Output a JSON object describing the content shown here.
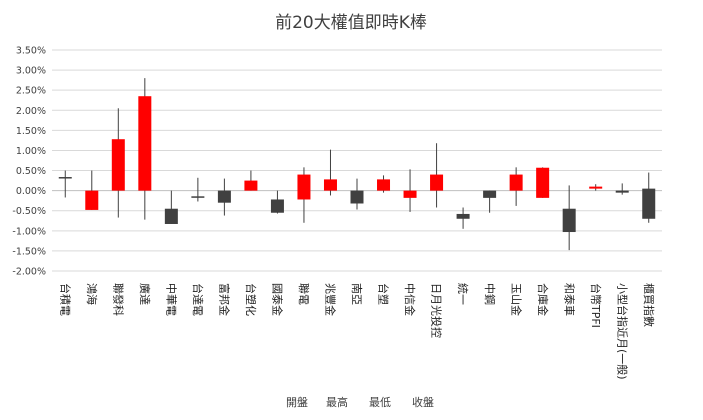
{
  "colors": {
    "up": "#ff0000",
    "down": "#404040",
    "wick": "#404040",
    "grid": "#d9d9d9",
    "axis": "#bfbfbf"
  },
  "chart_data": {
    "type": "candlestick",
    "title": "前20大權值即時K棒",
    "ylim": [
      -2.0,
      3.5
    ],
    "ytick_step": 0.5,
    "ytick_labels": [
      "-2.00%",
      "-1.50%",
      "-1.00%",
      "-0.50%",
      "0.00%",
      "0.50%",
      "1.00%",
      "1.50%",
      "2.00%",
      "2.50%",
      "3.00%",
      "3.50%"
    ],
    "legend": [
      "開盤",
      "最高",
      "最低",
      "收盤"
    ],
    "categories": [
      "台積電",
      "鴻海",
      "聯發科",
      "廣達",
      "中華電",
      "台達電",
      "富邦金",
      "台塑化",
      "國泰金",
      "聯電",
      "兆豐金",
      "南亞",
      "台塑",
      "中信金",
      "日月光投控",
      "統一",
      "中鋼",
      "玉山金",
      "合庫金",
      "和泰車",
      "台幣TPFI",
      "小型台指近月(一般)",
      "櫃買指數"
    ],
    "series": [
      {
        "name": "開盤",
        "values": [
          0.32,
          -0.48,
          0.0,
          0.0,
          -0.45,
          -0.16,
          0.0,
          0.0,
          -0.22,
          -0.22,
          0.0,
          0.0,
          0.0,
          -0.18,
          0.0,
          -0.58,
          0.0,
          0.0,
          -0.18,
          -0.45,
          0.05,
          0.0,
          0.05
        ]
      },
      {
        "name": "最高",
        "values": [
          0.5,
          0.5,
          2.05,
          2.8,
          0.0,
          0.32,
          0.3,
          0.5,
          0.0,
          0.58,
          1.02,
          0.3,
          0.38,
          0.53,
          1.18,
          -0.42,
          0.0,
          0.58,
          0.58,
          0.13,
          0.16,
          0.18,
          0.45
        ]
      },
      {
        "name": "最低",
        "values": [
          -0.17,
          -0.48,
          -0.67,
          -0.72,
          -0.83,
          -0.27,
          -0.62,
          0.0,
          -0.57,
          -0.8,
          -0.12,
          -0.47,
          -0.05,
          -0.53,
          -0.42,
          -0.95,
          -0.55,
          -0.38,
          -0.18,
          -1.48,
          0.0,
          -0.1,
          -0.8
        ]
      },
      {
        "name": "收盤",
        "values": [
          0.33,
          0.0,
          1.28,
          2.35,
          -0.83,
          -0.2,
          -0.3,
          0.25,
          -0.55,
          0.4,
          0.28,
          -0.32,
          0.28,
          0.0,
          0.4,
          -0.7,
          -0.18,
          0.4,
          0.57,
          -1.03,
          0.1,
          -0.05,
          -0.7
        ]
      }
    ]
  }
}
